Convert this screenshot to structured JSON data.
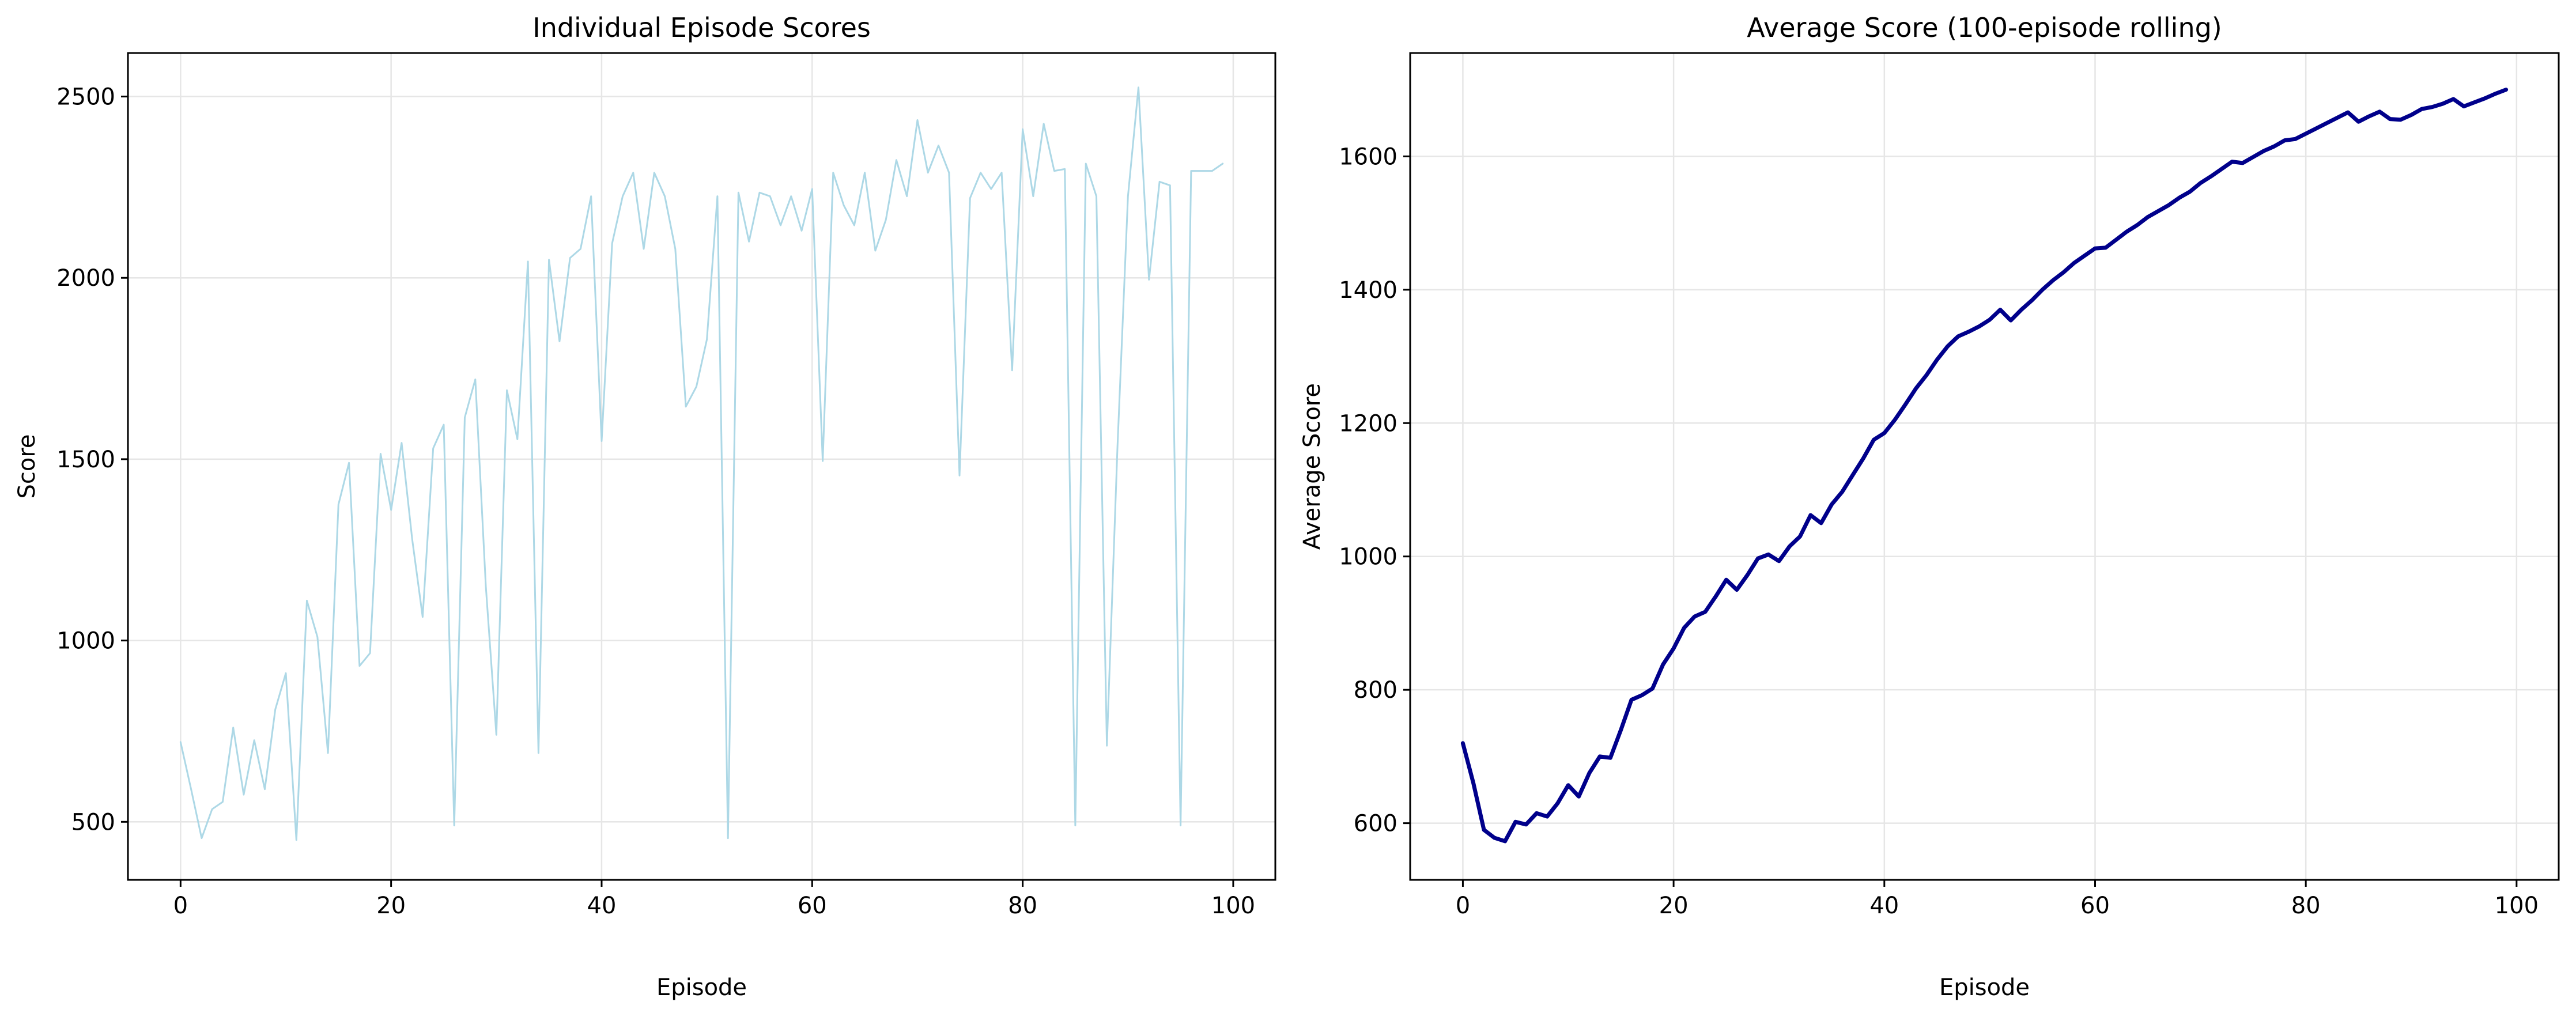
{
  "chart_data": [
    {
      "type": "line",
      "title": "Individual Episode Scores",
      "xlabel": "Episode",
      "ylabel": "Score",
      "xlim": [
        -5,
        104
      ],
      "ylim": [
        340,
        2620
      ],
      "xticks": [
        0,
        20,
        40,
        60,
        80,
        100
      ],
      "yticks": [
        500,
        1000,
        1500,
        2000,
        2500
      ],
      "grid": true,
      "legend": "none",
      "color": "#add8e6",
      "x_start": 0,
      "series": [
        {
          "values": [
            720,
            590,
            455,
            535,
            555,
            760,
            575,
            725,
            590,
            810,
            910,
            450,
            1110,
            1010,
            690,
            1375,
            1490,
            930,
            965,
            1515,
            1360,
            1545,
            1280,
            1065,
            1530,
            1595,
            490,
            1615,
            1720,
            1150,
            740,
            1690,
            1555,
            2045,
            690,
            2050,
            1825,
            2055,
            2080,
            2225,
            1550,
            2095,
            2225,
            2290,
            2080,
            2290,
            2225,
            2080,
            1645,
            1700,
            1830,
            2225,
            455,
            2235,
            2100,
            2235,
            2225,
            2145,
            2225,
            2130,
            2245,
            1495,
            2290,
            2200,
            2145,
            2290,
            2075,
            2160,
            2325,
            2225,
            2435,
            2290,
            2365,
            2290,
            1455,
            2220,
            2290,
            2245,
            2290,
            1745,
            2410,
            2225,
            2425,
            2295,
            2300,
            490,
            2315,
            2225,
            710,
            1530,
            2225,
            2525,
            1995,
            2265,
            2255,
            490,
            2295,
            2295,
            2295,
            2315
          ]
        }
      ]
    },
    {
      "type": "line",
      "title": "Average Score (100-episode rolling)",
      "xlabel": "Episode",
      "ylabel": "Average Score",
      "xlim": [
        -5,
        104
      ],
      "ylim": [
        515,
        1755
      ],
      "xticks": [
        0,
        20,
        40,
        60,
        80,
        100
      ],
      "yticks": [
        600,
        800,
        1000,
        1200,
        1400,
        1600
      ],
      "grid": true,
      "legend": "none",
      "color": "#00008b",
      "x_start": 0,
      "series": [
        {
          "values": [
            720,
            660,
            590,
            578,
            573,
            602,
            598,
            615,
            610,
            630,
            657,
            640,
            675,
            700,
            698,
            740,
            785,
            792,
            802,
            838,
            862,
            893,
            910,
            917,
            940,
            965,
            950,
            972,
            997,
            1003,
            993,
            1015,
            1030,
            1062,
            1050,
            1078,
            1097,
            1122,
            1147,
            1175,
            1185,
            1205,
            1228,
            1252,
            1272,
            1295,
            1315,
            1330,
            1337,
            1345,
            1355,
            1370,
            1354,
            1370,
            1384,
            1400,
            1414,
            1426,
            1440,
            1451,
            1462,
            1463,
            1475,
            1487,
            1497,
            1509,
            1518,
            1527,
            1538,
            1547,
            1560,
            1570,
            1581,
            1592,
            1590,
            1599,
            1608,
            1615,
            1624,
            1626,
            1634,
            1642,
            1650,
            1658,
            1666,
            1652,
            1660,
            1667,
            1656,
            1655,
            1662,
            1671,
            1674,
            1679,
            1686,
            1675,
            1681,
            1687,
            1694,
            1700
          ]
        }
      ]
    }
  ]
}
